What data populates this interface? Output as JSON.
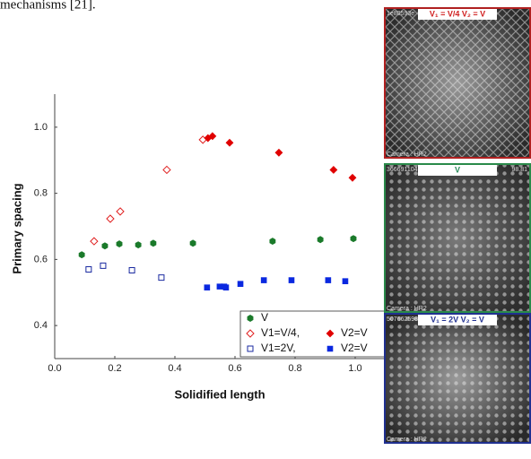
{
  "header_text": "mechanisms [21].",
  "chart_data": {
    "type": "scatter",
    "xlabel": "Solidified length",
    "ylabel": "Primary spacing",
    "xlim": [
      0,
      1.1
    ],
    "ylim": [
      0.3,
      1.1
    ],
    "xticks": [
      {
        "value": 0,
        "label": "0.0"
      },
      0.2,
      0.4,
      0.6,
      0.8,
      {
        "value": 1,
        "label": "1.0"
      }
    ],
    "yticks": [
      0.4,
      0.6,
      0.8,
      {
        "value": 1,
        "label": "1.0"
      }
    ],
    "series": [
      {
        "name": "V",
        "color": "#1a7a2a",
        "marker": "hexagon",
        "x": [
          0.09,
          0.167,
          0.215,
          0.278,
          0.328,
          0.46,
          0.725,
          0.884,
          0.994
        ],
        "values": [
          0.614,
          0.641,
          0.647,
          0.644,
          0.649,
          0.649,
          0.655,
          0.66,
          0.663
        ]
      },
      {
        "name": "V1=V/4,",
        "color": "#e02020",
        "marker": "diamond-open",
        "x": [
          0.131,
          0.185,
          0.218,
          0.373,
          0.493
        ],
        "values": [
          0.655,
          0.723,
          0.745,
          0.871,
          0.962
        ]
      },
      {
        "name": "V2=V",
        "color": "#e00000",
        "marker": "diamond",
        "x": [
          0.51,
          0.525,
          0.582,
          0.746,
          0.928,
          0.991
        ],
        "values": [
          0.967,
          0.973,
          0.953,
          0.923,
          0.871,
          0.847
        ]
      },
      {
        "name": "V1=2V,",
        "color": "#1a2aa0",
        "marker": "square-open",
        "x": [
          0.113,
          0.161,
          0.257,
          0.355
        ],
        "values": [
          0.57,
          0.581,
          0.567,
          0.545
        ]
      },
      {
        "name": "V2=V",
        "color": "#0a28e0",
        "marker": "square",
        "x": [
          0.507,
          0.549,
          0.564,
          0.57,
          0.618,
          0.696,
          0.788,
          0.91,
          0.967
        ],
        "values": [
          0.515,
          0.518,
          0.518,
          0.515,
          0.526,
          0.537,
          0.537,
          0.537,
          0.534
        ]
      }
    ]
  },
  "panels": [
    {
      "id": "1e80593e",
      "label": "V₁ = V/4 V₂ = V",
      "camera": "Camera : HR2",
      "border": "#b02020",
      "label_color": "#d02020"
    },
    {
      "id": "366691104",
      "label": "V",
      "extra": "98.81",
      "camera": "Camera : HR2",
      "border": "#2a8a4a",
      "label_color": "#2a8a5a"
    },
    {
      "id": "507662598",
      "label": "V₁ = 2V V₂ = V",
      "camera": "Camera : HR2",
      "border": "#203090",
      "label_color": "#203090"
    }
  ]
}
